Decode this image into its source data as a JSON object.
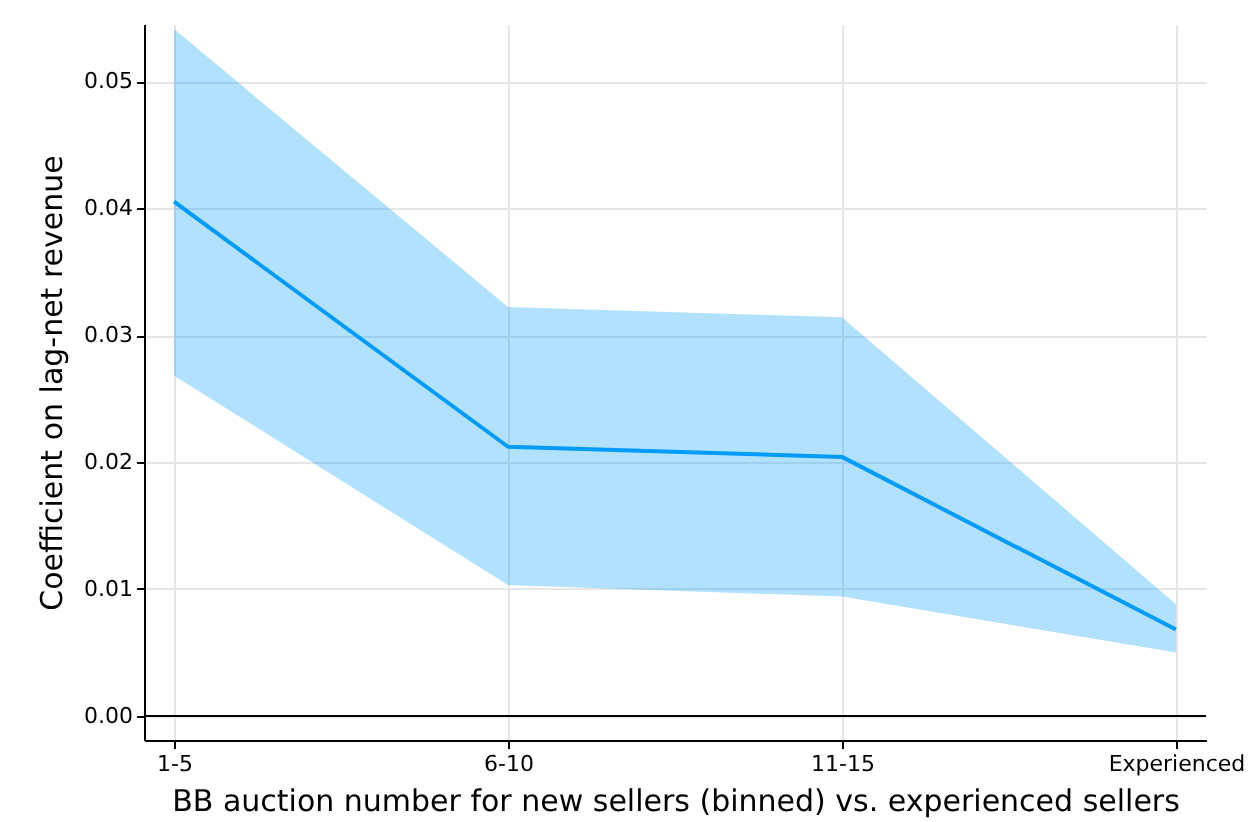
{
  "chart_data": {
    "type": "line",
    "xlabel": "BB auction number for new sellers (binned) vs. experienced sellers",
    "ylabel": "Coefficient on lag-net revenue",
    "categories": [
      "1-5",
      "6-10",
      "11-15",
      "Experienced"
    ],
    "series": [
      {
        "color": "#009af9",
        "values": [
          0.0405,
          0.0212,
          0.0204,
          0.0068
        ],
        "lower": [
          0.0268,
          0.0103,
          0.0094,
          0.005
        ],
        "upper": [
          0.0541,
          0.0322,
          0.0314,
          0.0088
        ]
      }
    ],
    "ylim": [
      -0.0019,
      0.0545
    ],
    "yticks": [
      {
        "value": 0,
        "label": "0.00"
      },
      {
        "value": 0.01,
        "label": "0.01"
      },
      {
        "value": 0.02,
        "label": "0.02"
      },
      {
        "value": 0.03,
        "label": "0.03"
      },
      {
        "value": 0.04,
        "label": "0.04"
      },
      {
        "value": 0.05,
        "label": "0.05"
      }
    ],
    "ref_lines": [
      {
        "axis": "y",
        "value": 0,
        "color": "#000000"
      }
    ],
    "grid": true,
    "marker": "none",
    "line_style": "solid"
  }
}
